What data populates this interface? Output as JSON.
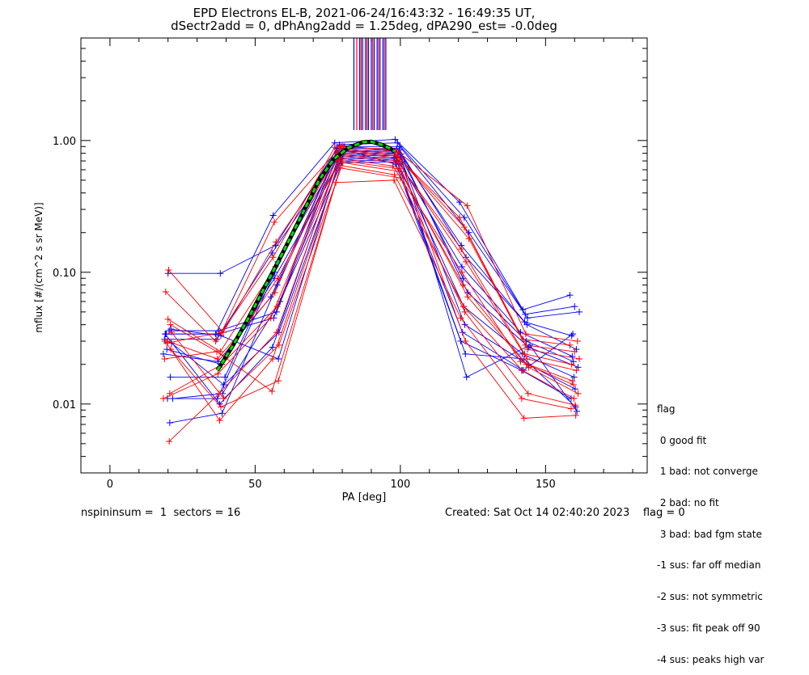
{
  "header": {
    "title_line1": "EPD Electrons EL-B, 2021-06-24/16:43:32 - 16:49:35 UT,",
    "title_line2": "dSectr2add = 0, dPhAng2add = 1.25deg, dPA290_est=  -0.0deg"
  },
  "footer": {
    "left": "nspininsum =  1  sectors = 16",
    "right": "Created: Sat Oct 14 02:40:20 2023    flag = 0"
  },
  "legend": {
    "items": [
      "flag",
      " 0 good fit",
      " 1 bad: not converge",
      " 2 bad: no fit",
      " 3 bad: bad fgm state",
      "-1 sus: far off median",
      "-2 sus: not symmetric",
      "-3 sus: fit peak off 90",
      "-4 sus: peaks high var"
    ]
  },
  "colors": {
    "series_a": "#0000ff",
    "series_b": "#ff0000",
    "fit_outline": "#000000",
    "fit_fill": "#00dd00",
    "axes": "#000000"
  },
  "chart_data": {
    "type": "line",
    "xlabel": "PA [deg]",
    "ylabel": "mflux [#/(cm^2 s sr MeV)]",
    "xlim": [
      -10,
      185
    ],
    "ylim": [
      0.003,
      6
    ],
    "yscale": "log",
    "xticks": [
      0,
      50,
      100,
      150
    ],
    "xtick_labels": [
      "0",
      "50",
      "100",
      "150"
    ],
    "yticks": [
      0.01,
      0.1,
      1.0
    ],
    "ytick_labels": [
      "0.01",
      "0.10",
      "1.00"
    ],
    "pa_x": [
      20,
      38,
      57,
      79,
      99,
      122,
      143,
      160
    ],
    "series": [
      {
        "color": "blue",
        "values": [
          0.034,
          0.034,
          0.27,
          0.96,
          1.02,
          0.34,
          0.052,
          0.067
        ]
      },
      {
        "color": "blue",
        "values": [
          0.098,
          0.098,
          0.16,
          0.93,
          0.96,
          0.26,
          0.048,
          0.055
        ]
      },
      {
        "color": "blue",
        "values": [
          0.016,
          0.016,
          0.12,
          0.9,
          0.9,
          0.2,
          0.045,
          0.05
        ]
      },
      {
        "color": "blue",
        "values": [
          0.011,
          0.011,
          0.1,
          0.87,
          0.87,
          0.16,
          0.042,
          0.033
        ]
      },
      {
        "color": "blue",
        "values": [
          0.0072,
          0.0085,
          0.08,
          0.84,
          0.85,
          0.13,
          0.04,
          0.026
        ]
      },
      {
        "color": "blue",
        "values": [
          0.024,
          0.021,
          0.065,
          0.82,
          0.83,
          0.11,
          0.035,
          0.023
        ]
      },
      {
        "color": "blue",
        "values": [
          0.036,
          0.036,
          0.05,
          0.8,
          0.81,
          0.09,
          0.03,
          0.021
        ]
      },
      {
        "color": "blue",
        "values": [
          0.029,
          0.014,
          0.035,
          0.78,
          0.79,
          0.07,
          0.027,
          0.019
        ]
      },
      {
        "color": "blue",
        "values": [
          0.034,
          0.01,
          0.027,
          0.76,
          0.77,
          0.055,
          0.024,
          0.016
        ]
      },
      {
        "color": "blue",
        "values": [
          0.037,
          0.033,
          0.022,
          0.74,
          0.75,
          0.04,
          0.02,
          0.013
        ]
      },
      {
        "color": "blue",
        "values": [
          0.031,
          0.031,
          0.14,
          0.72,
          0.73,
          0.03,
          0.018,
          0.011
        ]
      },
      {
        "color": "blue",
        "values": [
          0.026,
          0.02,
          0.09,
          0.7,
          0.71,
          0.024,
          0.022,
          0.0095
        ]
      },
      {
        "color": "blue",
        "values": [
          0.011,
          0.012,
          0.06,
          0.68,
          0.69,
          0.016,
          0.028,
          0.0088
        ]
      },
      {
        "color": "blue",
        "values": [
          0.034,
          0.034,
          0.045,
          0.88,
          0.66,
          0.035,
          0.018,
          0.034
        ]
      },
      {
        "color": "red",
        "values": [
          0.104,
          0.035,
          0.17,
          0.92,
          0.82,
          0.32,
          0.034,
          0.03
        ]
      },
      {
        "color": "red",
        "values": [
          0.071,
          0.03,
          0.13,
          0.89,
          0.79,
          0.26,
          0.031,
          0.028
        ]
      },
      {
        "color": "red",
        "values": [
          0.044,
          0.025,
          0.11,
          0.86,
          0.76,
          0.22,
          0.028,
          0.025
        ]
      },
      {
        "color": "red",
        "values": [
          0.04,
          0.023,
          0.09,
          0.83,
          0.73,
          0.18,
          0.026,
          0.022
        ]
      },
      {
        "color": "red",
        "values": [
          0.03,
          0.022,
          0.07,
          0.8,
          0.7,
          0.15,
          0.024,
          0.02
        ]
      },
      {
        "color": "red",
        "values": [
          0.012,
          0.02,
          0.055,
          0.77,
          0.67,
          0.12,
          0.022,
          0.018
        ]
      },
      {
        "color": "red",
        "values": [
          0.011,
          0.017,
          0.045,
          0.74,
          0.64,
          0.1,
          0.021,
          0.015
        ]
      },
      {
        "color": "red",
        "values": [
          0.0052,
          0.012,
          0.035,
          0.71,
          0.61,
          0.08,
          0.02,
          0.014
        ]
      },
      {
        "color": "red",
        "values": [
          0.035,
          0.011,
          0.028,
          0.68,
          0.58,
          0.065,
          0.019,
          0.012
        ]
      },
      {
        "color": "red",
        "values": [
          0.03,
          0.0075,
          0.022,
          0.65,
          0.55,
          0.055,
          0.018,
          0.011
        ]
      },
      {
        "color": "red",
        "values": [
          0.026,
          0.0095,
          0.015,
          0.62,
          0.52,
          0.05,
          0.012,
          0.0098
        ]
      },
      {
        "color": "red",
        "values": [
          0.022,
          0.025,
          0.0125,
          0.48,
          0.5,
          0.045,
          0.011,
          0.0092
        ]
      },
      {
        "color": "red",
        "values": [
          0.029,
          0.035,
          0.24,
          0.9,
          0.85,
          0.03,
          0.0078,
          0.0082
        ]
      }
    ],
    "fit": {
      "x": [
        37,
        42,
        47,
        52,
        57,
        62,
        67,
        72,
        77,
        82,
        87,
        90,
        93,
        96,
        98
      ],
      "y": [
        0.018,
        0.027,
        0.042,
        0.068,
        0.11,
        0.18,
        0.3,
        0.5,
        0.72,
        0.88,
        0.97,
        0.98,
        0.94,
        0.88,
        0.83
      ]
    },
    "peak_markers": {
      "y_range": [
        1.2,
        6
      ],
      "blue_x": [
        84,
        86,
        87,
        88,
        89,
        90,
        91,
        92,
        93,
        94,
        95
      ],
      "red_x": [
        85,
        86.5,
        88.5,
        90.5,
        92.5,
        94.5
      ]
    }
  }
}
